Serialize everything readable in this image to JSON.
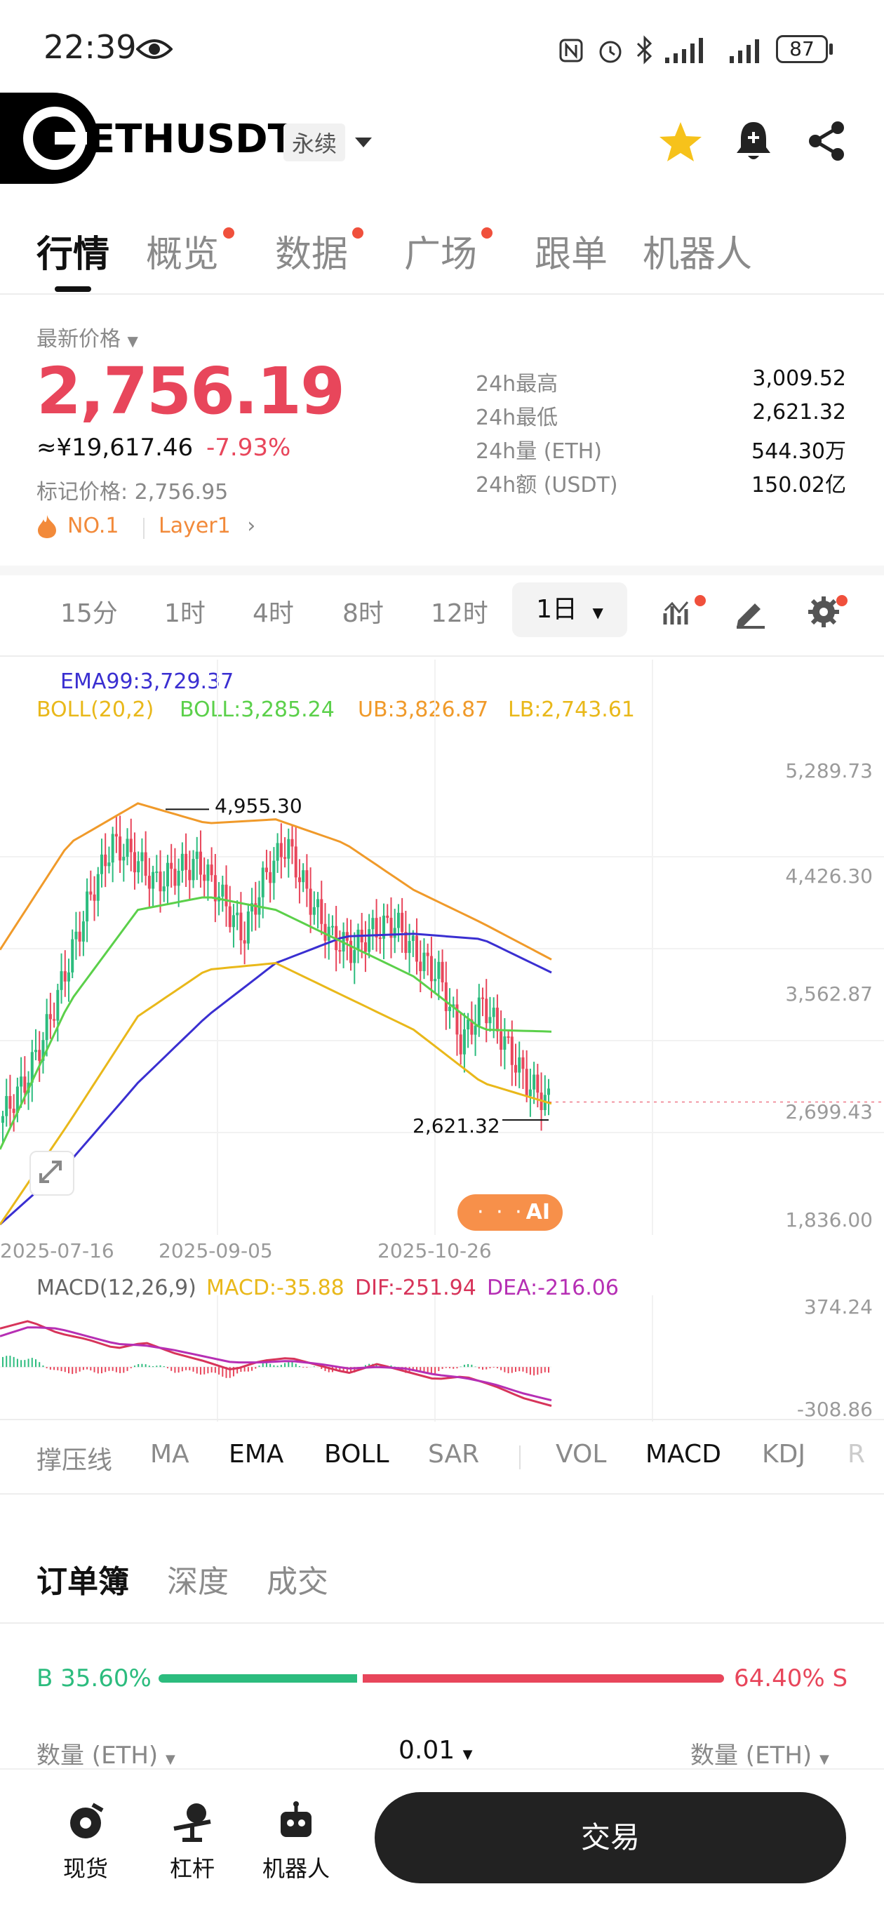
{
  "status_bar": {
    "time": "22:39",
    "battery": "87"
  },
  "header": {
    "symbol": "ETHUSDT",
    "contract_type": "永续"
  },
  "tabs": [
    {
      "label": "行情",
      "active": true,
      "dot": false
    },
    {
      "label": "概览",
      "active": false,
      "dot": true
    },
    {
      "label": "数据",
      "active": false,
      "dot": true
    },
    {
      "label": "广场",
      "active": false,
      "dot": true
    },
    {
      "label": "跟单",
      "active": false,
      "dot": false
    },
    {
      "label": "机器人",
      "active": false,
      "dot": false
    }
  ],
  "price": {
    "label": "最新价格",
    "last": "2,756.19",
    "cny": "≈¥19,617.46",
    "change": "-7.93%",
    "mark_label": "标记价格:",
    "mark_value": "2,756.95",
    "rank": "NO.1",
    "tag": "Layer1"
  },
  "stats": [
    {
      "k": "24h最高",
      "v": "3,009.52"
    },
    {
      "k": "24h最低",
      "v": "2,621.32"
    },
    {
      "k": "24h量 (ETH)",
      "v": "544.30万"
    },
    {
      "k": "24h额 (USDT)",
      "v": "150.02亿"
    }
  ],
  "timeframes": [
    "15分",
    "1时",
    "4时",
    "8时",
    "12时"
  ],
  "timeframe_selected": "1日",
  "indicators": {
    "ema": "EMA99:3,729.37",
    "boll": "BOLL(20,2)",
    "boll_mid": "BOLL:3,285.24",
    "ub": "UB:3,826.87",
    "lb": "LB:2,743.61",
    "macd_title": "MACD(12,26,9)",
    "macd": "MACD:-35.88",
    "dif": "DIF:-251.94",
    "dea": "DEA:-216.06"
  },
  "chart_data": {
    "type": "line",
    "y_axis_labels": [
      "5,289.73",
      "4,426.30",
      "3,562.87",
      "2,699.43",
      "1,836.00"
    ],
    "x_axis_labels": [
      "2025-07-16",
      "2025-09-05",
      "2025-10-26"
    ],
    "high_marker": "4,955.30",
    "low_marker": "2,621.32",
    "ylim": [
      1836.0,
      5289.73
    ],
    "macd_axis_labels": [
      "374.24",
      "-308.86"
    ],
    "macd_ylim": [
      -308.86,
      374.24
    ],
    "ai_badge": "AI",
    "series_samples": {
      "ema99": [
        1836,
        2300,
        2900,
        3400,
        3800,
        4000,
        4020,
        3980,
        3729
      ],
      "boll_mid": [
        2400,
        3500,
        4200,
        4300,
        4200,
        3950,
        3700,
        3300,
        3285
      ],
      "boll_ub": [
        3900,
        4700,
        5000,
        4850,
        4880,
        4700,
        4350,
        4100,
        3827
      ],
      "boll_lb": [
        1836,
        2600,
        3400,
        3750,
        3800,
        3550,
        3300,
        2900,
        2744
      ]
    }
  },
  "indicator_tabs": [
    {
      "label": "撑压线",
      "on": false
    },
    {
      "label": "MA",
      "on": false
    },
    {
      "label": "EMA",
      "on": true
    },
    {
      "label": "BOLL",
      "on": true
    },
    {
      "label": "SAR",
      "on": false
    },
    {
      "label": "VOL",
      "on": false
    },
    {
      "label": "MACD",
      "on": true
    },
    {
      "label": "KDJ",
      "on": false
    },
    {
      "label": "R",
      "on": false
    }
  ],
  "orderbook": {
    "tabs": [
      "订单簿",
      "深度",
      "成交"
    ],
    "buy_pct": "B 35.60%",
    "sell_pct": "64.40% S",
    "buy_ratio": 0.356,
    "qty_left": "数量 (ETH)",
    "precision": "0.01",
    "qty_right": "数量 (ETH)"
  },
  "bottom_nav": {
    "spot": "现货",
    "margin": "杠杆",
    "bot": "机器人",
    "trade": "交易"
  },
  "colors": {
    "red": "#e8465b",
    "green": "#2cbc7e",
    "orange": "#f28a3a"
  }
}
